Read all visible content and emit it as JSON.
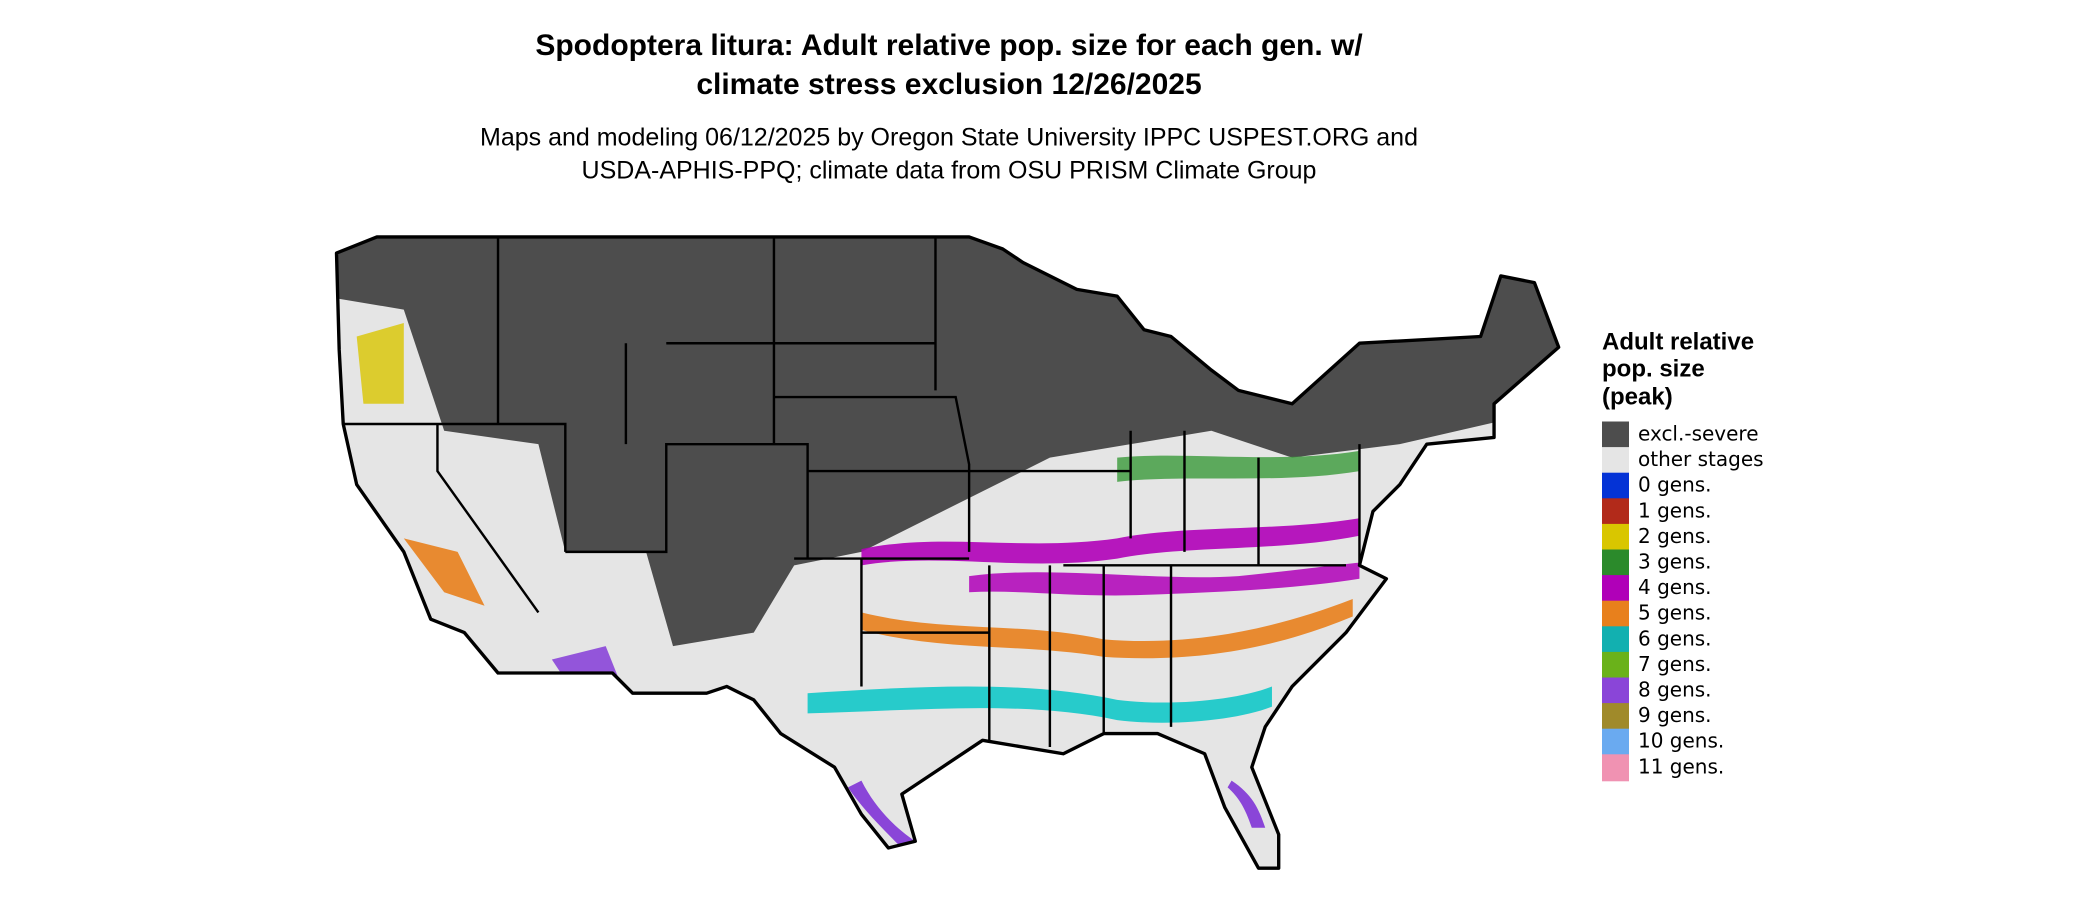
{
  "header": {
    "title_lines": [
      "Spodoptera litura: Adult relative pop. size for each gen. w/",
      "climate stress exclusion 12/26/2025"
    ],
    "subtitle_lines": [
      "Maps and modeling 06/12/2025 by Oregon State University IPPC USPEST.ORG and",
      "USDA-APHIS-PPQ; climate data from OSU PRISM Climate Group"
    ]
  },
  "legend": {
    "title_lines": [
      "Adult relative",
      "pop. size",
      "(peak)"
    ],
    "items": [
      {
        "label": "excl.-severe",
        "color": "#4d4d4d"
      },
      {
        "label": "other stages",
        "color": "#e5e5e5"
      },
      {
        "label": "0 gens.",
        "color": "#0433d6"
      },
      {
        "label": "1 gens.",
        "color": "#b22a1a"
      },
      {
        "label": "2 gens.",
        "color": "#d9c600"
      },
      {
        "label": "3 gens.",
        "color": "#2b8a2b"
      },
      {
        "label": "4 gens.",
        "color": "#b000b8"
      },
      {
        "label": "5 gens.",
        "color": "#e8801c"
      },
      {
        "label": "6 gens.",
        "color": "#12b0b0"
      },
      {
        "label": "7 gens.",
        "color": "#6ab21a"
      },
      {
        "label": "8 gens.",
        "color": "#8a45d8"
      },
      {
        "label": "9 gens.",
        "color": "#a08a2a"
      },
      {
        "label": "10 gens.",
        "color": "#6aaaf0"
      },
      {
        "label": "11 gens.",
        "color": "#f092b2"
      }
    ]
  }
}
